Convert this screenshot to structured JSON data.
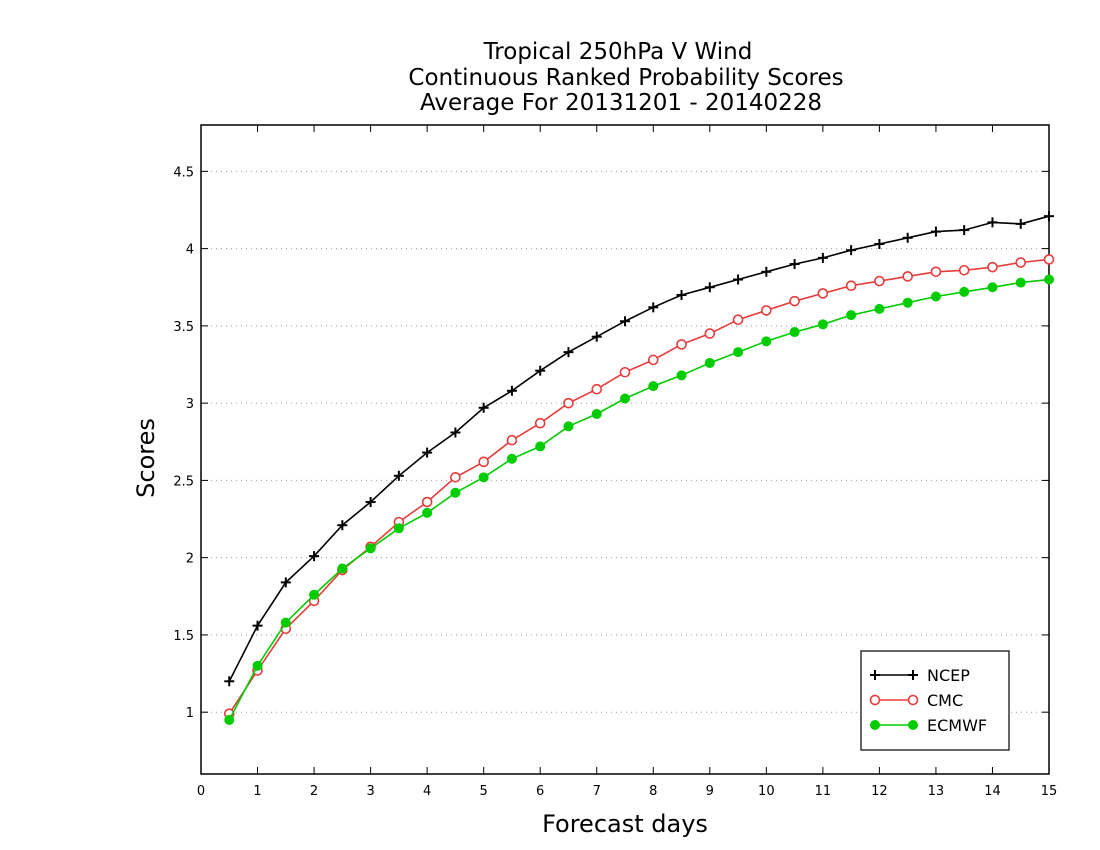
{
  "chart_data": {
    "type": "line",
    "title": [
      "Tropical 250hPa V Wind",
      "Continuous Ranked Probability Scores",
      "Average For 20131201 - 20140228"
    ],
    "xlabel": "Forecast days",
    "ylabel": "Scores",
    "xlim": [
      0,
      15
    ],
    "ylim": [
      0.6,
      4.8
    ],
    "xticks": [
      "0",
      "1",
      "2",
      "3",
      "4",
      "5",
      "6",
      "7",
      "8",
      "9",
      "10",
      "11",
      "12",
      "13",
      "14",
      "15"
    ],
    "yticks": [
      "1",
      "1.5",
      "2",
      "2.5",
      "3",
      "3.5",
      "4",
      "4.5"
    ],
    "ytick_values": [
      1,
      1.5,
      2,
      2.5,
      3,
      3.5,
      4,
      4.5
    ],
    "grid": "horizontal dotted",
    "legend_position": "bottom-right",
    "x": [
      0.5,
      1,
      1.5,
      2,
      2.5,
      3,
      3.5,
      4,
      4.5,
      5,
      5.5,
      6,
      6.5,
      7,
      7.5,
      8,
      8.5,
      9,
      9.5,
      10,
      10.5,
      11,
      11.5,
      12,
      12.5,
      13,
      13.5,
      14,
      14.5,
      15
    ],
    "series": [
      {
        "name": "NCEP",
        "color": "#000000",
        "marker": "plus",
        "values": [
          1.2,
          1.56,
          1.84,
          2.01,
          2.21,
          2.36,
          2.53,
          2.68,
          2.81,
          2.97,
          3.08,
          3.21,
          3.33,
          3.43,
          3.53,
          3.62,
          3.7,
          3.75,
          3.8,
          3.85,
          3.9,
          3.94,
          3.99,
          4.03,
          4.07,
          4.11,
          4.12,
          4.17,
          4.16,
          4.21
        ]
      },
      {
        "name": "CMC",
        "color": "#e83c3c",
        "marker": "open-circle",
        "values": [
          0.99,
          1.27,
          1.54,
          1.72,
          1.92,
          2.07,
          2.23,
          2.36,
          2.52,
          2.62,
          2.76,
          2.87,
          3.0,
          3.09,
          3.2,
          3.28,
          3.38,
          3.45,
          3.54,
          3.6,
          3.66,
          3.71,
          3.76,
          3.79,
          3.82,
          3.85,
          3.86,
          3.88,
          3.91,
          3.93
        ]
      },
      {
        "name": "ECMWF",
        "color": "#00cc00",
        "marker": "filled-circle",
        "values": [
          0.95,
          1.3,
          1.58,
          1.76,
          1.93,
          2.06,
          2.19,
          2.29,
          2.42,
          2.52,
          2.64,
          2.72,
          2.85,
          2.93,
          3.03,
          3.11,
          3.18,
          3.26,
          3.33,
          3.4,
          3.46,
          3.51,
          3.57,
          3.61,
          3.65,
          3.69,
          3.72,
          3.75,
          3.78,
          3.8
        ]
      }
    ]
  }
}
